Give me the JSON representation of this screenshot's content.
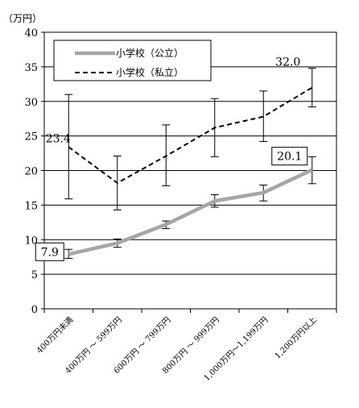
{
  "chart_data": {
    "type": "line",
    "unit_label": "（万円）",
    "categories": [
      "400万円未満",
      "400万円 ～ 599万円",
      "600万円 ～ 799万円",
      "800万円 ～ 999万円",
      "1,000万円～1,199万円",
      "1,200万円以上"
    ],
    "ylim": [
      0,
      40
    ],
    "yticks": [
      0,
      5,
      10,
      15,
      20,
      25,
      30,
      35,
      40
    ],
    "grid": true,
    "legend_position": "top-left",
    "series": [
      {
        "name": "小学校（公立）",
        "style": "solid",
        "color": "#a6a6a6",
        "values": [
          7.9,
          9.5,
          12.2,
          15.6,
          16.8,
          20.1
        ],
        "error_low": [
          7.3,
          8.9,
          11.6,
          14.7,
          15.6,
          18.1
        ],
        "error_high": [
          8.6,
          10.1,
          12.7,
          16.5,
          17.9,
          22.0
        ]
      },
      {
        "name": "小学校（私立）",
        "style": "dashed",
        "color": "#000000",
        "values": [
          23.4,
          18.2,
          22.1,
          26.2,
          27.8,
          32.0
        ],
        "error_low": [
          15.9,
          14.3,
          17.8,
          22.0,
          24.2,
          29.2
        ],
        "error_high": [
          31.0,
          22.1,
          26.6,
          30.4,
          31.5,
          34.8
        ]
      }
    ],
    "data_labels": [
      {
        "series": 0,
        "index": 0,
        "text": "7.9",
        "boxed": true
      },
      {
        "series": 0,
        "index": 5,
        "text": "20.1",
        "boxed": true
      },
      {
        "series": 1,
        "index": 0,
        "text": "23.4",
        "boxed": false
      },
      {
        "series": 1,
        "index": 5,
        "text": "32.0",
        "boxed": false
      }
    ]
  }
}
